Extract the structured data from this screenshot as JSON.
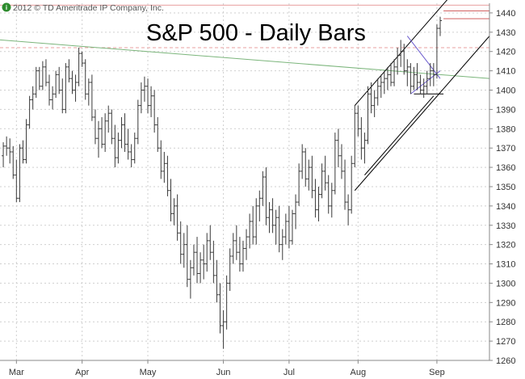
{
  "chart_data": {
    "type": "ohlc",
    "title": "S&P 500 - Daily Bars",
    "copyright": "2012 © TD Ameritrade IP Company, Inc.",
    "copyright_mark": "i",
    "xlabel": "",
    "ylabel": "",
    "ylim": [
      1260,
      1445
    ],
    "y_ticks": [
      1260,
      1270,
      1280,
      1290,
      1300,
      1310,
      1320,
      1330,
      1340,
      1350,
      1360,
      1370,
      1380,
      1390,
      1400,
      1410,
      1420,
      1430,
      1440
    ],
    "y_axis_side": "right",
    "grid": true,
    "x_months": [
      {
        "label": "Mar",
        "index": 4
      },
      {
        "label": "Apr",
        "index": 24
      },
      {
        "label": "May",
        "index": 44
      },
      {
        "label": "Jun",
        "index": 67
      },
      {
        "label": "Jul",
        "index": 87
      },
      {
        "label": "Aug",
        "index": 108
      },
      {
        "label": "Sep",
        "index": 132
      }
    ],
    "x_range": [
      -1,
      148
    ],
    "bars": [
      [
        1366,
        1373,
        1360,
        1371
      ],
      [
        1371,
        1376,
        1366,
        1370
      ],
      [
        1370,
        1375,
        1362,
        1368
      ],
      [
        1368,
        1371,
        1354,
        1356
      ],
      [
        1356,
        1364,
        1342,
        1344
      ],
      [
        1344,
        1372,
        1342,
        1370
      ],
      [
        1370,
        1374,
        1362,
        1364
      ],
      [
        1364,
        1385,
        1362,
        1382
      ],
      [
        1382,
        1397,
        1380,
        1395
      ],
      [
        1395,
        1402,
        1390,
        1398
      ],
      [
        1398,
        1412,
        1396,
        1410
      ],
      [
        1410,
        1412,
        1400,
        1402
      ],
      [
        1402,
        1415,
        1400,
        1412
      ],
      [
        1412,
        1416,
        1402,
        1404
      ],
      [
        1404,
        1408,
        1392,
        1395
      ],
      [
        1395,
        1402,
        1390,
        1398
      ],
      [
        1398,
        1410,
        1396,
        1408
      ],
      [
        1408,
        1412,
        1398,
        1400
      ],
      [
        1400,
        1406,
        1388,
        1390
      ],
      [
        1390,
        1414,
        1388,
        1412
      ],
      [
        1412,
        1416,
        1404,
        1406
      ],
      [
        1406,
        1410,
        1398,
        1400
      ],
      [
        1400,
        1408,
        1394,
        1404
      ],
      [
        1404,
        1422,
        1402,
        1419
      ],
      [
        1419,
        1420,
        1412,
        1414
      ],
      [
        1414,
        1416,
        1395,
        1398
      ],
      [
        1398,
        1406,
        1392,
        1404
      ],
      [
        1404,
        1408,
        1384,
        1386
      ],
      [
        1386,
        1390,
        1372,
        1375
      ],
      [
        1375,
        1384,
        1365,
        1380
      ],
      [
        1380,
        1386,
        1370,
        1372
      ],
      [
        1372,
        1388,
        1368,
        1384
      ],
      [
        1384,
        1392,
        1378,
        1388
      ],
      [
        1388,
        1390,
        1372,
        1375
      ],
      [
        1375,
        1382,
        1360,
        1365
      ],
      [
        1365,
        1378,
        1362,
        1374
      ],
      [
        1374,
        1386,
        1370,
        1382
      ],
      [
        1382,
        1388,
        1368,
        1372
      ],
      [
        1372,
        1380,
        1364,
        1368
      ],
      [
        1368,
        1372,
        1360,
        1364
      ],
      [
        1364,
        1378,
        1362,
        1375
      ],
      [
        1375,
        1395,
        1372,
        1392
      ],
      [
        1392,
        1404,
        1388,
        1400
      ],
      [
        1400,
        1407,
        1394,
        1402
      ],
      [
        1402,
        1406,
        1388,
        1392
      ],
      [
        1392,
        1402,
        1386,
        1397
      ],
      [
        1397,
        1400,
        1378,
        1382
      ],
      [
        1382,
        1386,
        1368,
        1370
      ],
      [
        1370,
        1374,
        1354,
        1358
      ],
      [
        1358,
        1368,
        1352,
        1362
      ],
      [
        1362,
        1366,
        1345,
        1348
      ],
      [
        1348,
        1354,
        1332,
        1336
      ],
      [
        1336,
        1344,
        1330,
        1340
      ],
      [
        1340,
        1346,
        1322,
        1326
      ],
      [
        1326,
        1332,
        1310,
        1315
      ],
      [
        1315,
        1326,
        1308,
        1320
      ],
      [
        1320,
        1330,
        1298,
        1302
      ],
      [
        1302,
        1312,
        1292,
        1308
      ],
      [
        1308,
        1320,
        1304,
        1316
      ],
      [
        1316,
        1324,
        1300,
        1305
      ],
      [
        1305,
        1316,
        1300,
        1312
      ],
      [
        1312,
        1320,
        1302,
        1310
      ],
      [
        1310,
        1326,
        1306,
        1322
      ],
      [
        1322,
        1330,
        1312,
        1316
      ],
      [
        1316,
        1322,
        1300,
        1304
      ],
      [
        1304,
        1312,
        1290,
        1294
      ],
      [
        1294,
        1300,
        1274,
        1278
      ],
      [
        1278,
        1286,
        1266,
        1280
      ],
      [
        1280,
        1304,
        1276,
        1300
      ],
      [
        1300,
        1318,
        1296,
        1314
      ],
      [
        1314,
        1326,
        1310,
        1322
      ],
      [
        1322,
        1330,
        1312,
        1316
      ],
      [
        1316,
        1324,
        1306,
        1310
      ],
      [
        1310,
        1322,
        1306,
        1318
      ],
      [
        1318,
        1328,
        1312,
        1324
      ],
      [
        1324,
        1336,
        1318,
        1332
      ],
      [
        1332,
        1340,
        1320,
        1324
      ],
      [
        1324,
        1344,
        1320,
        1340
      ],
      [
        1340,
        1348,
        1332,
        1344
      ],
      [
        1344,
        1358,
        1340,
        1355
      ],
      [
        1355,
        1360,
        1330,
        1334
      ],
      [
        1334,
        1342,
        1326,
        1338
      ],
      [
        1338,
        1344,
        1326,
        1330
      ],
      [
        1330,
        1338,
        1320,
        1334
      ],
      [
        1334,
        1340,
        1316,
        1320
      ],
      [
        1320,
        1328,
        1312,
        1324
      ],
      [
        1324,
        1336,
        1320,
        1332
      ],
      [
        1332,
        1340,
        1318,
        1322
      ],
      [
        1322,
        1338,
        1320,
        1336
      ],
      [
        1336,
        1346,
        1328,
        1342
      ],
      [
        1342,
        1362,
        1340,
        1358
      ],
      [
        1358,
        1372,
        1354,
        1368
      ],
      [
        1368,
        1370,
        1350,
        1354
      ],
      [
        1354,
        1364,
        1348,
        1360
      ],
      [
        1360,
        1366,
        1344,
        1348
      ],
      [
        1348,
        1354,
        1334,
        1338
      ],
      [
        1338,
        1350,
        1332,
        1346
      ],
      [
        1346,
        1362,
        1344,
        1358
      ],
      [
        1358,
        1366,
        1348,
        1352
      ],
      [
        1352,
        1356,
        1336,
        1340
      ],
      [
        1340,
        1352,
        1334,
        1348
      ],
      [
        1348,
        1378,
        1346,
        1374
      ],
      [
        1374,
        1380,
        1360,
        1366
      ],
      [
        1366,
        1372,
        1354,
        1358
      ],
      [
        1358,
        1364,
        1338,
        1342
      ],
      [
        1342,
        1346,
        1330,
        1338
      ],
      [
        1338,
        1366,
        1336,
        1362
      ],
      [
        1362,
        1392,
        1360,
        1388
      ],
      [
        1388,
        1392,
        1376,
        1380
      ],
      [
        1380,
        1386,
        1364,
        1370
      ],
      [
        1370,
        1378,
        1362,
        1374
      ],
      [
        1374,
        1402,
        1372,
        1398
      ],
      [
        1398,
        1404,
        1388,
        1392
      ],
      [
        1392,
        1400,
        1386,
        1396
      ],
      [
        1396,
        1406,
        1392,
        1402
      ],
      [
        1402,
        1408,
        1396,
        1404
      ],
      [
        1404,
        1410,
        1398,
        1406
      ],
      [
        1406,
        1412,
        1400,
        1408
      ],
      [
        1408,
        1414,
        1402,
        1404
      ],
      [
        1404,
        1416,
        1402,
        1412
      ],
      [
        1412,
        1422,
        1408,
        1418
      ],
      [
        1418,
        1426,
        1412,
        1420
      ],
      [
        1420,
        1424,
        1408,
        1410
      ],
      [
        1410,
        1416,
        1402,
        1412
      ],
      [
        1412,
        1414,
        1398,
        1402
      ],
      [
        1402,
        1412,
        1400,
        1408
      ],
      [
        1408,
        1414,
        1400,
        1404
      ],
      [
        1404,
        1408,
        1398,
        1400
      ],
      [
        1400,
        1406,
        1396,
        1402
      ],
      [
        1402,
        1410,
        1398,
        1406
      ],
      [
        1406,
        1414,
        1402,
        1410
      ],
      [
        1410,
        1414,
        1402,
        1408
      ],
      [
        1408,
        1434,
        1406,
        1432
      ],
      [
        1432,
        1438,
        1428,
        1436
      ]
    ],
    "reference_lines": [
      {
        "type": "horizontal",
        "y": 1444,
        "color": "#e8a0a0",
        "style": "solid"
      },
      {
        "type": "horizontal",
        "y": 1422,
        "color": "#e8a0a0",
        "style": "dashed"
      },
      {
        "type": "segment",
        "x1": 134,
        "y1": 1441,
        "x2": 148,
        "y2": 1441,
        "color": "#d06060",
        "style": "solid"
      },
      {
        "type": "segment",
        "x1": 134,
        "y1": 1437,
        "x2": 148,
        "y2": 1437,
        "color": "#d06060",
        "style": "solid"
      },
      {
        "type": "segment",
        "x1": -1,
        "y1": 1426,
        "x2": 148,
        "y2": 1406,
        "color": "#7bb57b",
        "style": "solid"
      },
      {
        "type": "segment",
        "x1": 107,
        "y1": 1348,
        "x2": 148,
        "y2": 1428,
        "color": "#000000",
        "style": "solid"
      },
      {
        "type": "segment",
        "x1": 107,
        "y1": 1392,
        "x2": 145,
        "y2": 1466,
        "color": "#000000",
        "style": "solid"
      },
      {
        "type": "segment",
        "x1": 110,
        "y1": 1356,
        "x2": 131,
        "y2": 1397,
        "color": "#000000",
        "style": "solid"
      },
      {
        "type": "segment",
        "x1": 123,
        "y1": 1428,
        "x2": 133,
        "y2": 1406,
        "color": "#6a5acd",
        "style": "solid"
      },
      {
        "type": "segment",
        "x1": 124,
        "y1": 1398,
        "x2": 133,
        "y2": 1410,
        "color": "#6a5acd",
        "style": "solid"
      },
      {
        "type": "segment",
        "x1": 125,
        "y1": 1398,
        "x2": 134,
        "y2": 1398,
        "color": "#000000",
        "style": "solid"
      }
    ]
  }
}
